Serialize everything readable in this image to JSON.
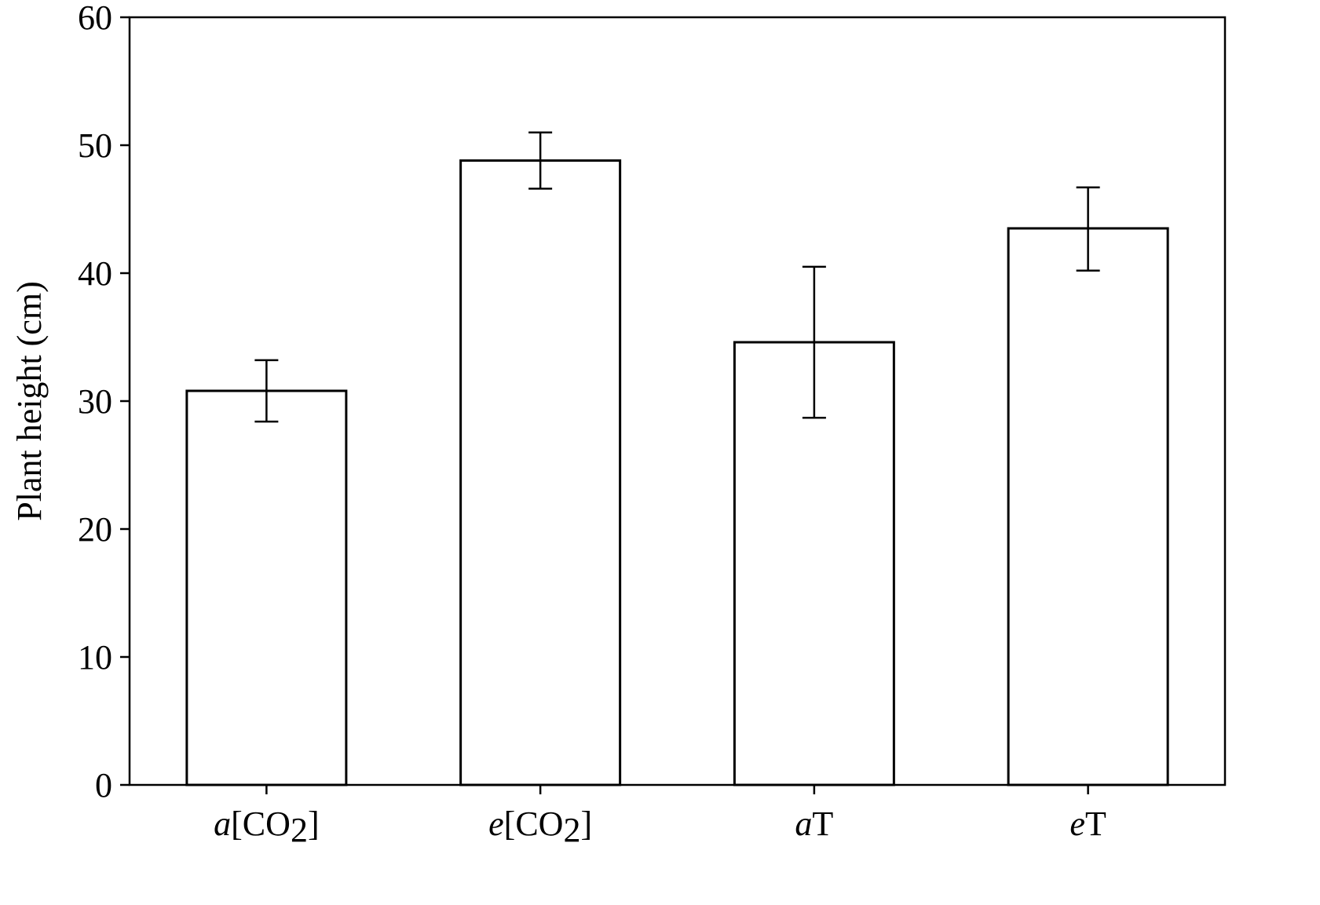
{
  "chart_data": {
    "type": "bar",
    "categories": [
      {
        "prefix": "a",
        "text": "[CO",
        "sub": "2",
        "suffix": "]"
      },
      {
        "prefix": "e",
        "text": "[CO",
        "sub": "2",
        "suffix": "]"
      },
      {
        "prefix": "a",
        "text": "T",
        "sub": "",
        "suffix": ""
      },
      {
        "prefix": "e",
        "text": "T",
        "sub": "",
        "suffix": ""
      }
    ],
    "values": [
      30.8,
      48.8,
      34.6,
      43.5
    ],
    "error_low": [
      28.4,
      46.6,
      28.7,
      40.2
    ],
    "error_high": [
      33.2,
      51.0,
      40.5,
      46.7
    ],
    "title": "",
    "xlabel": "",
    "ylabel": "Plant height (cm)",
    "ylim": [
      0,
      60
    ],
    "yticks": [
      "0",
      "10",
      "20",
      "30",
      "40",
      "50",
      "60"
    ],
    "grid": false,
    "bar_fill": "#ffffff",
    "bar_edge": "#000000"
  }
}
